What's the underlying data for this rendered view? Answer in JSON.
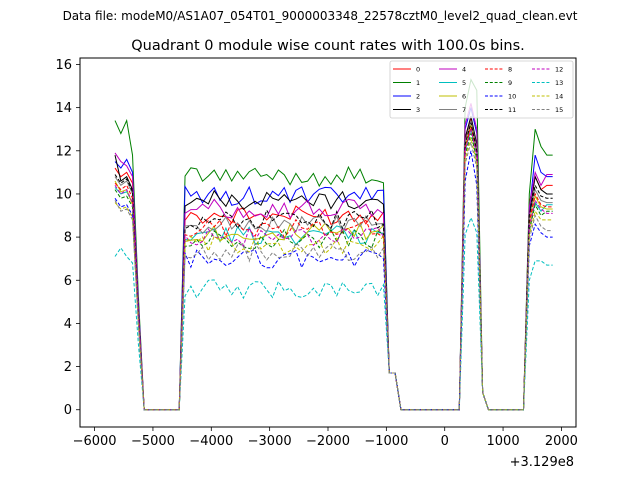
{
  "figure": {
    "suptitle": "Data file: modeM0/AS1A07_054T01_9000003348_22578cztM0_level2_quad_clean.evt"
  },
  "chart_data": {
    "type": "line",
    "title": "Quadrant 0 module wise count rates with 100.0s bins.",
    "xlabel": "",
    "ylabel": "",
    "x_offset_label": "+3.129e8",
    "xlim": [
      -6250,
      2250
    ],
    "ylim": [
      -0.8,
      16.3
    ],
    "xticks": [
      -6000,
      -5000,
      -4000,
      -3000,
      -2000,
      -1000,
      0,
      1000,
      2000
    ],
    "xtick_labels": [
      "−6000",
      "−5000",
      "−4000",
      "−3000",
      "−2000",
      "−1000",
      "0",
      "1000",
      "2000"
    ],
    "yticks": [
      0,
      2,
      4,
      6,
      8,
      10,
      12,
      14,
      16
    ],
    "ytick_labels": [
      "0",
      "2",
      "4",
      "6",
      "8",
      "10",
      "12",
      "14",
      "16"
    ],
    "grid": false,
    "legend_position": "top-right",
    "legend_columns": 4,
    "bin_width_s": 100,
    "series": [
      {
        "name": "0",
        "color": "#ff0000",
        "dash": "solid",
        "base": 9.0,
        "pre": [
          11.2,
          10.8,
          11.0,
          10.5
        ],
        "spike": [
          12.5,
          13.5,
          12.2
        ],
        "late": [
          9.6,
          10.8,
          10.2,
          10.4
        ]
      },
      {
        "name": "1",
        "color": "#008000",
        "dash": "solid",
        "base": 10.8,
        "pre": [
          13.4,
          12.8,
          13.4,
          11.8
        ],
        "spike": [
          14.0,
          15.3,
          14.8
        ],
        "late": [
          10.0,
          13.0,
          12.2,
          11.8
        ]
      },
      {
        "name": "2",
        "color": "#0000ff",
        "dash": "solid",
        "base": 9.9,
        "pre": [
          11.5,
          11.2,
          11.6,
          11.0
        ],
        "spike": [
          13.0,
          14.0,
          12.8
        ],
        "late": [
          9.2,
          11.8,
          11.0,
          10.8
        ]
      },
      {
        "name": "3",
        "color": "#000000",
        "dash": "solid",
        "base": 9.7,
        "pre": [
          11.8,
          10.6,
          10.8,
          10.2
        ],
        "spike": [
          12.6,
          13.6,
          12.3
        ],
        "late": [
          9.0,
          10.8,
          10.2,
          10.0
        ]
      },
      {
        "name": "4",
        "color": "#bf00bf",
        "dash": "solid",
        "base": 9.3,
        "pre": [
          11.9,
          11.5,
          11.3,
          10.8
        ],
        "spike": [
          13.2,
          14.2,
          13.0
        ],
        "late": [
          9.4,
          11.0,
          10.4,
          10.9
        ]
      },
      {
        "name": "5",
        "color": "#00bfbf",
        "dash": "solid",
        "base": 8.1,
        "pre": [
          10.3,
          10.0,
          10.1,
          9.6
        ],
        "spike": [
          12.0,
          13.0,
          11.8
        ],
        "late": [
          8.5,
          9.6,
          9.2,
          9.5
        ]
      },
      {
        "name": "6",
        "color": "#bfbf00",
        "dash": "solid",
        "base": 8.2,
        "pre": [
          10.6,
          10.1,
          10.2,
          9.5
        ],
        "spike": [
          12.2,
          13.2,
          12.0
        ],
        "late": [
          8.5,
          9.9,
          9.4,
          9.3
        ]
      },
      {
        "name": "7",
        "color": "#808080",
        "dash": "solid",
        "base": 8.6,
        "pre": [
          10.8,
          10.4,
          10.6,
          10.0
        ],
        "spike": [
          12.4,
          13.4,
          12.1
        ],
        "late": [
          8.9,
          10.2,
          9.7,
          9.6
        ]
      },
      {
        "name": "8",
        "color": "#ff0000",
        "dash": "dashed",
        "base": 8.4,
        "pre": [
          10.5,
          10.2,
          10.4,
          9.8
        ],
        "spike": [
          12.1,
          13.1,
          11.9
        ],
        "late": [
          8.7,
          10.0,
          9.5,
          9.4
        ]
      },
      {
        "name": "9",
        "color": "#008000",
        "dash": "dashed",
        "base": 7.9,
        "pre": [
          10.2,
          9.8,
          9.9,
          9.4
        ],
        "spike": [
          11.8,
          12.8,
          11.6
        ],
        "late": [
          8.3,
          9.5,
          9.0,
          9.2
        ]
      },
      {
        "name": "10",
        "color": "#0000ff",
        "dash": "dashed",
        "base": 7.0,
        "pre": [
          9.8,
          9.4,
          9.5,
          9.0
        ],
        "spike": [
          10.6,
          12.0,
          10.4
        ],
        "late": [
          7.6,
          8.6,
          8.2,
          8.0
        ]
      },
      {
        "name": "11",
        "color": "#000000",
        "dash": "dashed",
        "base": 8.8,
        "pre": [
          10.9,
          10.5,
          10.7,
          10.1
        ],
        "spike": [
          12.3,
          13.3,
          12.0
        ],
        "late": [
          9.0,
          10.4,
          9.9,
          9.8
        ]
      },
      {
        "name": "12",
        "color": "#bf00bf",
        "dash": "dashed",
        "base": 8.0,
        "pre": [
          10.4,
          10.0,
          10.2,
          9.6
        ],
        "spike": [
          12.0,
          13.0,
          11.8
        ],
        "late": [
          8.4,
          9.7,
          9.3,
          9.1
        ]
      },
      {
        "name": "13",
        "color": "#00bfbf",
        "dash": "dashed",
        "base": 5.6,
        "pre": [
          7.1,
          7.5,
          7.1,
          6.8
        ],
        "spike": [
          8.1,
          8.9,
          8.2
        ],
        "late": [
          6.0,
          6.9,
          6.9,
          6.7
        ]
      },
      {
        "name": "14",
        "color": "#bfbf00",
        "dash": "dashed",
        "base": 7.6,
        "pre": [
          9.6,
          9.3,
          9.4,
          8.9
        ],
        "spike": [
          11.6,
          12.6,
          11.4
        ],
        "late": [
          8.1,
          9.2,
          8.8,
          8.8
        ]
      },
      {
        "name": "15",
        "color": "#808080",
        "dash": "dashed",
        "base": 7.3,
        "pre": [
          9.7,
          9.2,
          9.3,
          8.8
        ],
        "spike": [
          11.4,
          12.4,
          11.2
        ],
        "late": [
          7.9,
          9.0,
          8.5,
          8.3
        ]
      }
    ],
    "time_layout": {
      "start": -5650,
      "end": 1850,
      "pre_bins": 4,
      "gap1": [
        -5150,
        -4550
      ],
      "main_on": [
        -4450,
        -1050
      ],
      "gap2": [
        -750,
        250
      ],
      "spike_on": [
        350,
        550
      ],
      "gap3": [
        750,
        1350
      ],
      "late_on": [
        1450,
        1750
      ]
    }
  }
}
